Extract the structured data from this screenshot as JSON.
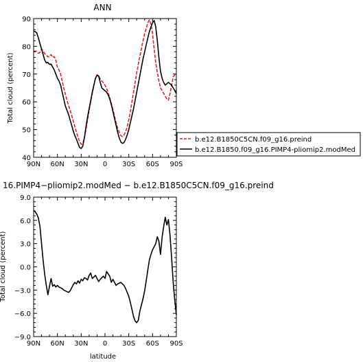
{
  "chart_data": [
    {
      "type": "line",
      "title": "ANN",
      "xlabel": "",
      "ylabel": "Total cloud (percent)",
      "xlim": [
        90,
        -90
      ],
      "ylim": [
        40,
        90
      ],
      "x_ticks": [
        90,
        60,
        30,
        0,
        -30,
        -60,
        -90
      ],
      "x_tick_labels": [
        "90N",
        "60N",
        "30N",
        "0",
        "30S",
        "60S",
        "90S"
      ],
      "y_ticks": [
        40,
        50,
        60,
        70,
        80,
        90
      ],
      "y_tick_labels": [
        "40",
        "50",
        "60",
        "70",
        "80",
        "90"
      ],
      "legend_position": "outside-right",
      "series": [
        {
          "name": "b.e12.B1850C5CN.f09_g16.preind",
          "color": "#e8201e",
          "dash": "dashed",
          "x": [
            90,
            87,
            84,
            82,
            80,
            78,
            76,
            74,
            72,
            70,
            68,
            66,
            64,
            62,
            60,
            58,
            56,
            54,
            52,
            50,
            48,
            46,
            44,
            42,
            40,
            38,
            36,
            34,
            32,
            30,
            28,
            26,
            24,
            22,
            20,
            18,
            16,
            14,
            12,
            10,
            8,
            6,
            4,
            2,
            0,
            -2,
            -4,
            -6,
            -8,
            -10,
            -12,
            -14,
            -16,
            -18,
            -20,
            -22,
            -24,
            -26,
            -28,
            -30,
            -32,
            -34,
            -36,
            -38,
            -40,
            -42,
            -44,
            -46,
            -48,
            -50,
            -52,
            -54,
            -56,
            -58,
            -60,
            -62,
            -64,
            -66,
            -68,
            -70,
            -72,
            -74,
            -76,
            -78,
            -80,
            -82,
            -84,
            -86,
            -88,
            -90
          ],
          "y": [
            78.2,
            78.3,
            77.5,
            77.8,
            79.0,
            78.3,
            77.3,
            76.8,
            76.2,
            76.3,
            77.0,
            76.0,
            76.3,
            75.0,
            72.4,
            71.5,
            70.0,
            67.5,
            65.0,
            62.8,
            60.5,
            58.8,
            57.0,
            55.0,
            53.0,
            51.0,
            49.0,
            47.2,
            45.7,
            44.7,
            45.0,
            47.0,
            50.0,
            53.5,
            57.0,
            60.0,
            63.0,
            66.0,
            68.5,
            69.8,
            69.3,
            68.2,
            67.5,
            66.8,
            66.0,
            64.8,
            63.2,
            61.5,
            59.5,
            57.2,
            54.8,
            52.5,
            50.5,
            49.0,
            47.8,
            47.5,
            48.0,
            49.2,
            51.0,
            53.5,
            56.5,
            60.0,
            63.5,
            67.0,
            70.5,
            73.5,
            76.5,
            79.3,
            82.0,
            84.5,
            86.5,
            88.5,
            89.5,
            88.0,
            84.5,
            79.0,
            74.0,
            70.5,
            67.5,
            65.0,
            64.0,
            63.0,
            62.0,
            61.0,
            60.6,
            63.0,
            66.0,
            69.0,
            69.7,
            70.0
          ]
        },
        {
          "name": "b.e12.B1850.f09_g16.PIMP4-pliomip2.modMed",
          "color": "#000000",
          "dash": "solid",
          "x": [
            90,
            88,
            86,
            84,
            82,
            80,
            78,
            76,
            74,
            72,
            70,
            68,
            66,
            64,
            62,
            60,
            58,
            56,
            54,
            52,
            50,
            48,
            46,
            44,
            42,
            40,
            38,
            36,
            34,
            32,
            30,
            28,
            26,
            24,
            22,
            20,
            18,
            16,
            14,
            12,
            10,
            8,
            6,
            4,
            2,
            0,
            -2,
            -4,
            -6,
            -8,
            -10,
            -12,
            -14,
            -16,
            -18,
            -20,
            -22,
            -24,
            -26,
            -28,
            -30,
            -32,
            -34,
            -36,
            -38,
            -40,
            -42,
            -44,
            -46,
            -48,
            -50,
            -52,
            -54,
            -56,
            -58,
            -60,
            -62,
            -64,
            -66,
            -68,
            -70,
            -72,
            -74,
            -76,
            -78,
            -80,
            -82,
            -84,
            -86,
            -88,
            -90
          ],
          "y": [
            85.5,
            85.3,
            84.8,
            83.0,
            81.0,
            79.0,
            77.0,
            75.0,
            74.0,
            74.2,
            73.5,
            73.6,
            72.5,
            71.5,
            70.0,
            68.5,
            67.5,
            66.0,
            63.5,
            61.0,
            58.5,
            57.0,
            55.5,
            53.5,
            51.5,
            49.5,
            47.8,
            46.5,
            45.0,
            43.5,
            43.2,
            44.0,
            47.0,
            51.0,
            54.5,
            57.5,
            60.5,
            63.5,
            66.0,
            68.5,
            69.5,
            69.3,
            67.0,
            65.0,
            64.5,
            64.0,
            63.5,
            62.5,
            61.0,
            59.0,
            56.5,
            54.0,
            51.5,
            49.0,
            47.0,
            45.5,
            45.0,
            45.3,
            46.5,
            48.0,
            50.0,
            52.5,
            55.0,
            57.5,
            60.5,
            63.5,
            66.5,
            69.5,
            72.5,
            75.5,
            78.0,
            80.5,
            83.0,
            85.3,
            87.0,
            88.5,
            89.3,
            87.0,
            82.0,
            76.0,
            71.0,
            68.5,
            67.0,
            66.0,
            66.5,
            67.0,
            66.5,
            66.0,
            65.0,
            64.0,
            63.0
          ]
        }
      ]
    },
    {
      "type": "line",
      "title": "16.PIMP4−pliomip2.modMed  −  b.e12.B1850C5CN.f09_g16.preind",
      "xlabel": "latitude",
      "ylabel": "Total cloud (percent)",
      "xlim": [
        90,
        -90
      ],
      "ylim": [
        -9,
        9
      ],
      "x_ticks": [
        90,
        60,
        30,
        0,
        -30,
        -60,
        -90
      ],
      "x_tick_labels": [
        "90N",
        "60N",
        "30N",
        "0",
        "30S",
        "60S",
        "90S"
      ],
      "y_ticks": [
        -9,
        -6,
        -3,
        0,
        3,
        6,
        9
      ],
      "y_tick_labels": [
        "−9.0",
        "−6.0",
        "−3.0",
        "0.0",
        "3.0",
        "6.0",
        "9.0"
      ],
      "series": [
        {
          "name": "",
          "color": "#000000",
          "dash": "solid",
          "x": [
            90,
            88,
            86,
            84,
            82,
            80,
            78,
            76,
            74,
            72,
            70,
            68,
            66,
            64,
            62,
            60,
            58,
            56,
            54,
            52,
            50,
            48,
            46,
            44,
            42,
            40,
            38,
            36,
            34,
            32,
            30,
            28,
            26,
            24,
            22,
            20,
            18,
            16,
            14,
            12,
            10,
            8,
            6,
            4,
            2,
            0,
            -2,
            -4,
            -6,
            -8,
            -10,
            -12,
            -14,
            -16,
            -18,
            -20,
            -22,
            -24,
            -26,
            -28,
            -30,
            -32,
            -34,
            -36,
            -38,
            -40,
            -42,
            -44,
            -46,
            -48,
            -50,
            -52,
            -54,
            -56,
            -58,
            -60,
            -62,
            -64,
            -66,
            -68,
            -70,
            -72,
            -74,
            -76,
            -78,
            -80,
            -82,
            -84,
            -86,
            -88,
            -90
          ],
          "y": [
            7.3,
            7.1,
            6.8,
            6.3,
            5.2,
            3.0,
            0.8,
            -1.0,
            -2.4,
            -3.6,
            -2.5,
            -1.5,
            -2.5,
            -2.3,
            -2.6,
            -2.4,
            -2.6,
            -2.7,
            -2.8,
            -3.0,
            -3.1,
            -3.2,
            -3.3,
            -3.1,
            -2.7,
            -2.3,
            -2.0,
            -2.2,
            -1.8,
            -2.1,
            -1.6,
            -1.8,
            -1.4,
            -1.5,
            -1.7,
            -1.1,
            -0.8,
            -1.5,
            -1.3,
            -1.1,
            -1.5,
            -1.9,
            -1.6,
            -1.4,
            -1.2,
            -1.5,
            -0.6,
            -0.9,
            -1.2,
            -2.0,
            -1.6,
            -2.0,
            -2.4,
            -2.2,
            -2.1,
            -2.0,
            -2.2,
            -2.4,
            -2.8,
            -3.3,
            -3.8,
            -4.6,
            -5.5,
            -6.4,
            -7.0,
            -7.2,
            -6.9,
            -5.7,
            -4.9,
            -4.1,
            -3.1,
            -1.8,
            -0.4,
            0.9,
            1.6,
            2.2,
            2.6,
            3.0,
            3.9,
            3.3,
            1.6,
            3.8,
            5.2,
            6.4,
            5.4,
            6.1,
            4.1,
            1.2,
            -2.0,
            -4.3,
            -6.2
          ]
        }
      ]
    }
  ]
}
